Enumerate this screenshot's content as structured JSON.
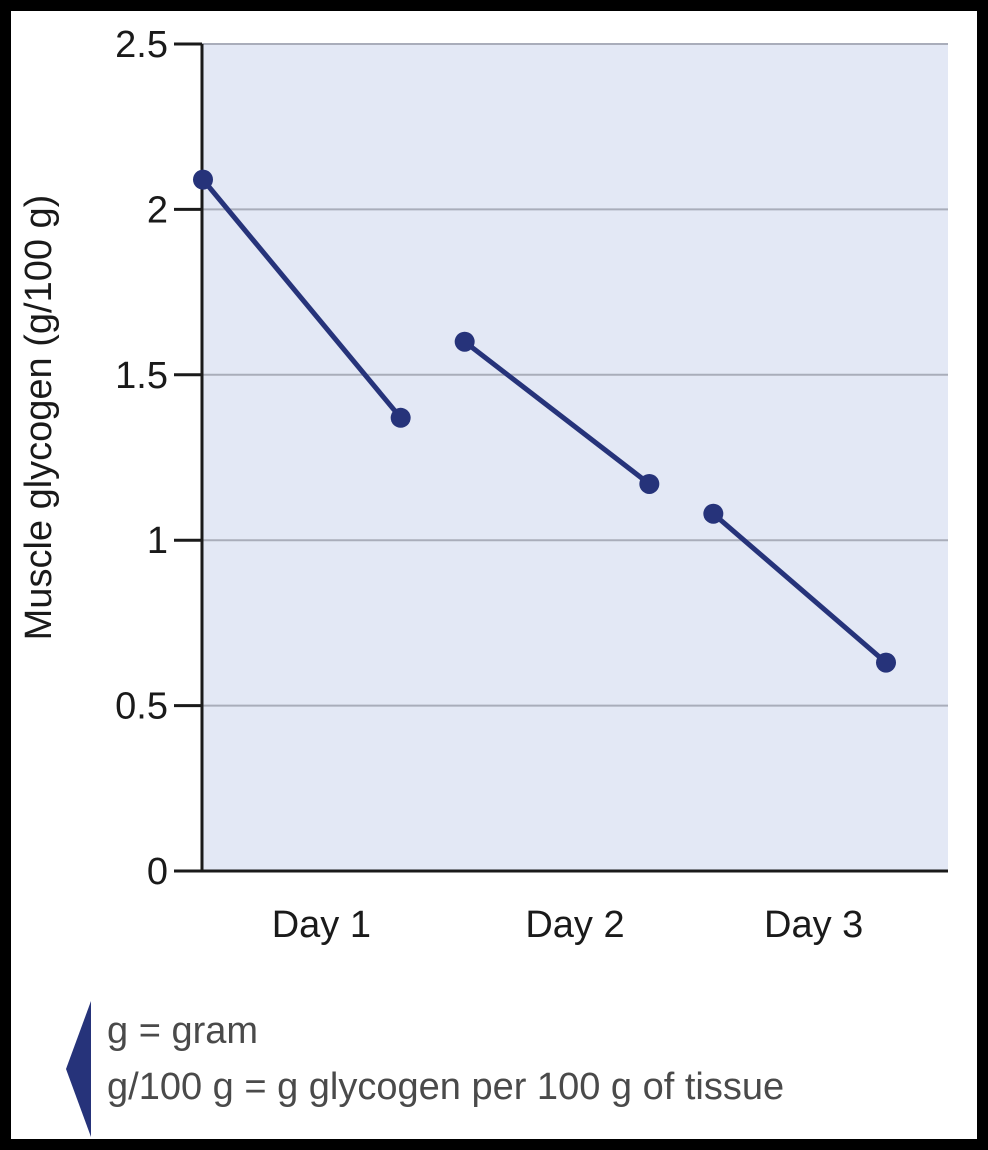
{
  "chart_data": {
    "type": "line",
    "ylabel": "Muscle glycogen (g/100 g)",
    "xlabel": "",
    "ylim": [
      0,
      2.5
    ],
    "yticks": [
      0,
      0.5,
      1,
      1.5,
      2,
      2.5
    ],
    "ytick_labels": [
      "0",
      "0.5",
      "1",
      "1.5",
      "2",
      "2.5"
    ],
    "grid": true,
    "categories": [
      "Day 1",
      "Day 2",
      "Day 3"
    ],
    "segments": [
      {
        "category": "Day 1",
        "values": [
          2.09,
          1.37
        ]
      },
      {
        "category": "Day 2",
        "values": [
          1.6,
          1.17
        ]
      },
      {
        "category": "Day 3",
        "values": [
          1.08,
          0.63
        ]
      }
    ],
    "colors": {
      "series": "#26337a",
      "plot_background": "#e3e8f5",
      "grid": "#a9adba",
      "axis": "#1a1a1a",
      "note_marker": "#26337a"
    },
    "notes": [
      "g = gram",
      "g/100 g = g glycogen per 100 g of tissue"
    ]
  }
}
